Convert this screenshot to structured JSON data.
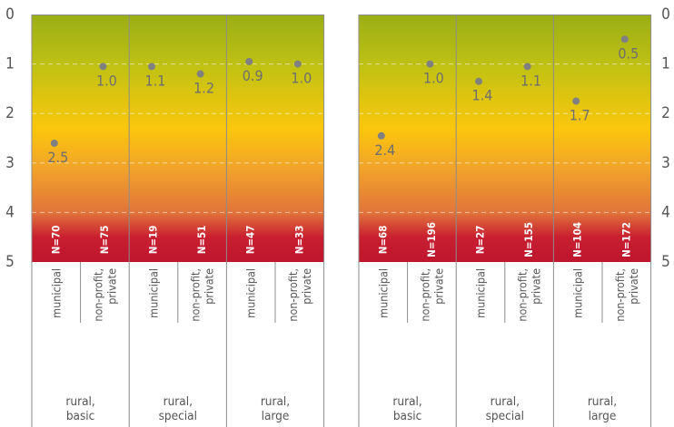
{
  "chart_data": {
    "type": "scatter",
    "title": "",
    "xlabel": "",
    "ylabel": "",
    "ylim": [
      0,
      5
    ],
    "y_inverted": true,
    "yticks": [
      "0",
      "1",
      "2",
      "3",
      "4",
      "5"
    ],
    "background": "vertical gradient green (0) - yellow (2.5) - orange - red (5)",
    "grid": "dashed horizontal lines at 1, 2, 3, 4",
    "colors": {
      "green": "#9aae16",
      "yellow": "#fbc70c",
      "orange": "#e98a30",
      "red": "#c3172f",
      "point": "#808080",
      "label": "#6e6e6e",
      "divider": "#8c8c8c"
    },
    "panels": [
      {
        "groups": [
          {
            "name": "rural,\nbasic",
            "categories": [
              {
                "label": "municipal",
                "n": "N=70",
                "value": 2.5,
                "y": 2.6
              },
              {
                "label": "non-profit,\nprivate",
                "n": "N=75",
                "value": 1.0,
                "y": 1.05
              }
            ]
          },
          {
            "name": "rural,\nspecial",
            "categories": [
              {
                "label": "municipal",
                "n": "N=19",
                "value": 1.1,
                "y": 1.05
              },
              {
                "label": "non-profit,\nprivate",
                "n": "N=51",
                "value": 1.2,
                "y": 1.2
              }
            ]
          },
          {
            "name": "rural,\nlarge",
            "categories": [
              {
                "label": "municipal",
                "n": "N=47",
                "value": 0.9,
                "y": 0.95
              },
              {
                "label": "non-profit,\nprivate",
                "n": "N=33",
                "value": 1.0,
                "y": 1.0
              }
            ]
          }
        ]
      },
      {
        "groups": [
          {
            "name": "rural,\nbasic",
            "categories": [
              {
                "label": "municipal",
                "n": "N=68",
                "value": 2.4,
                "y": 2.45
              },
              {
                "label": "non-profit,\nprivate",
                "n": "N=196",
                "value": 1.0,
                "y": 1.0
              }
            ]
          },
          {
            "name": "rural,\nspecial",
            "categories": [
              {
                "label": "municipal",
                "n": "N=27",
                "value": 1.4,
                "y": 1.35
              },
              {
                "label": "non-profit,\nprivate",
                "n": "N=155",
                "value": 1.1,
                "y": 1.05
              }
            ]
          },
          {
            "name": "rural,\nlarge",
            "categories": [
              {
                "label": "municipal",
                "n": "N=104",
                "value": 1.7,
                "y": 1.75
              },
              {
                "label": "non-profit,\nprivate",
                "n": "N=172",
                "value": 0.5,
                "y": 0.5
              }
            ]
          }
        ]
      }
    ]
  }
}
